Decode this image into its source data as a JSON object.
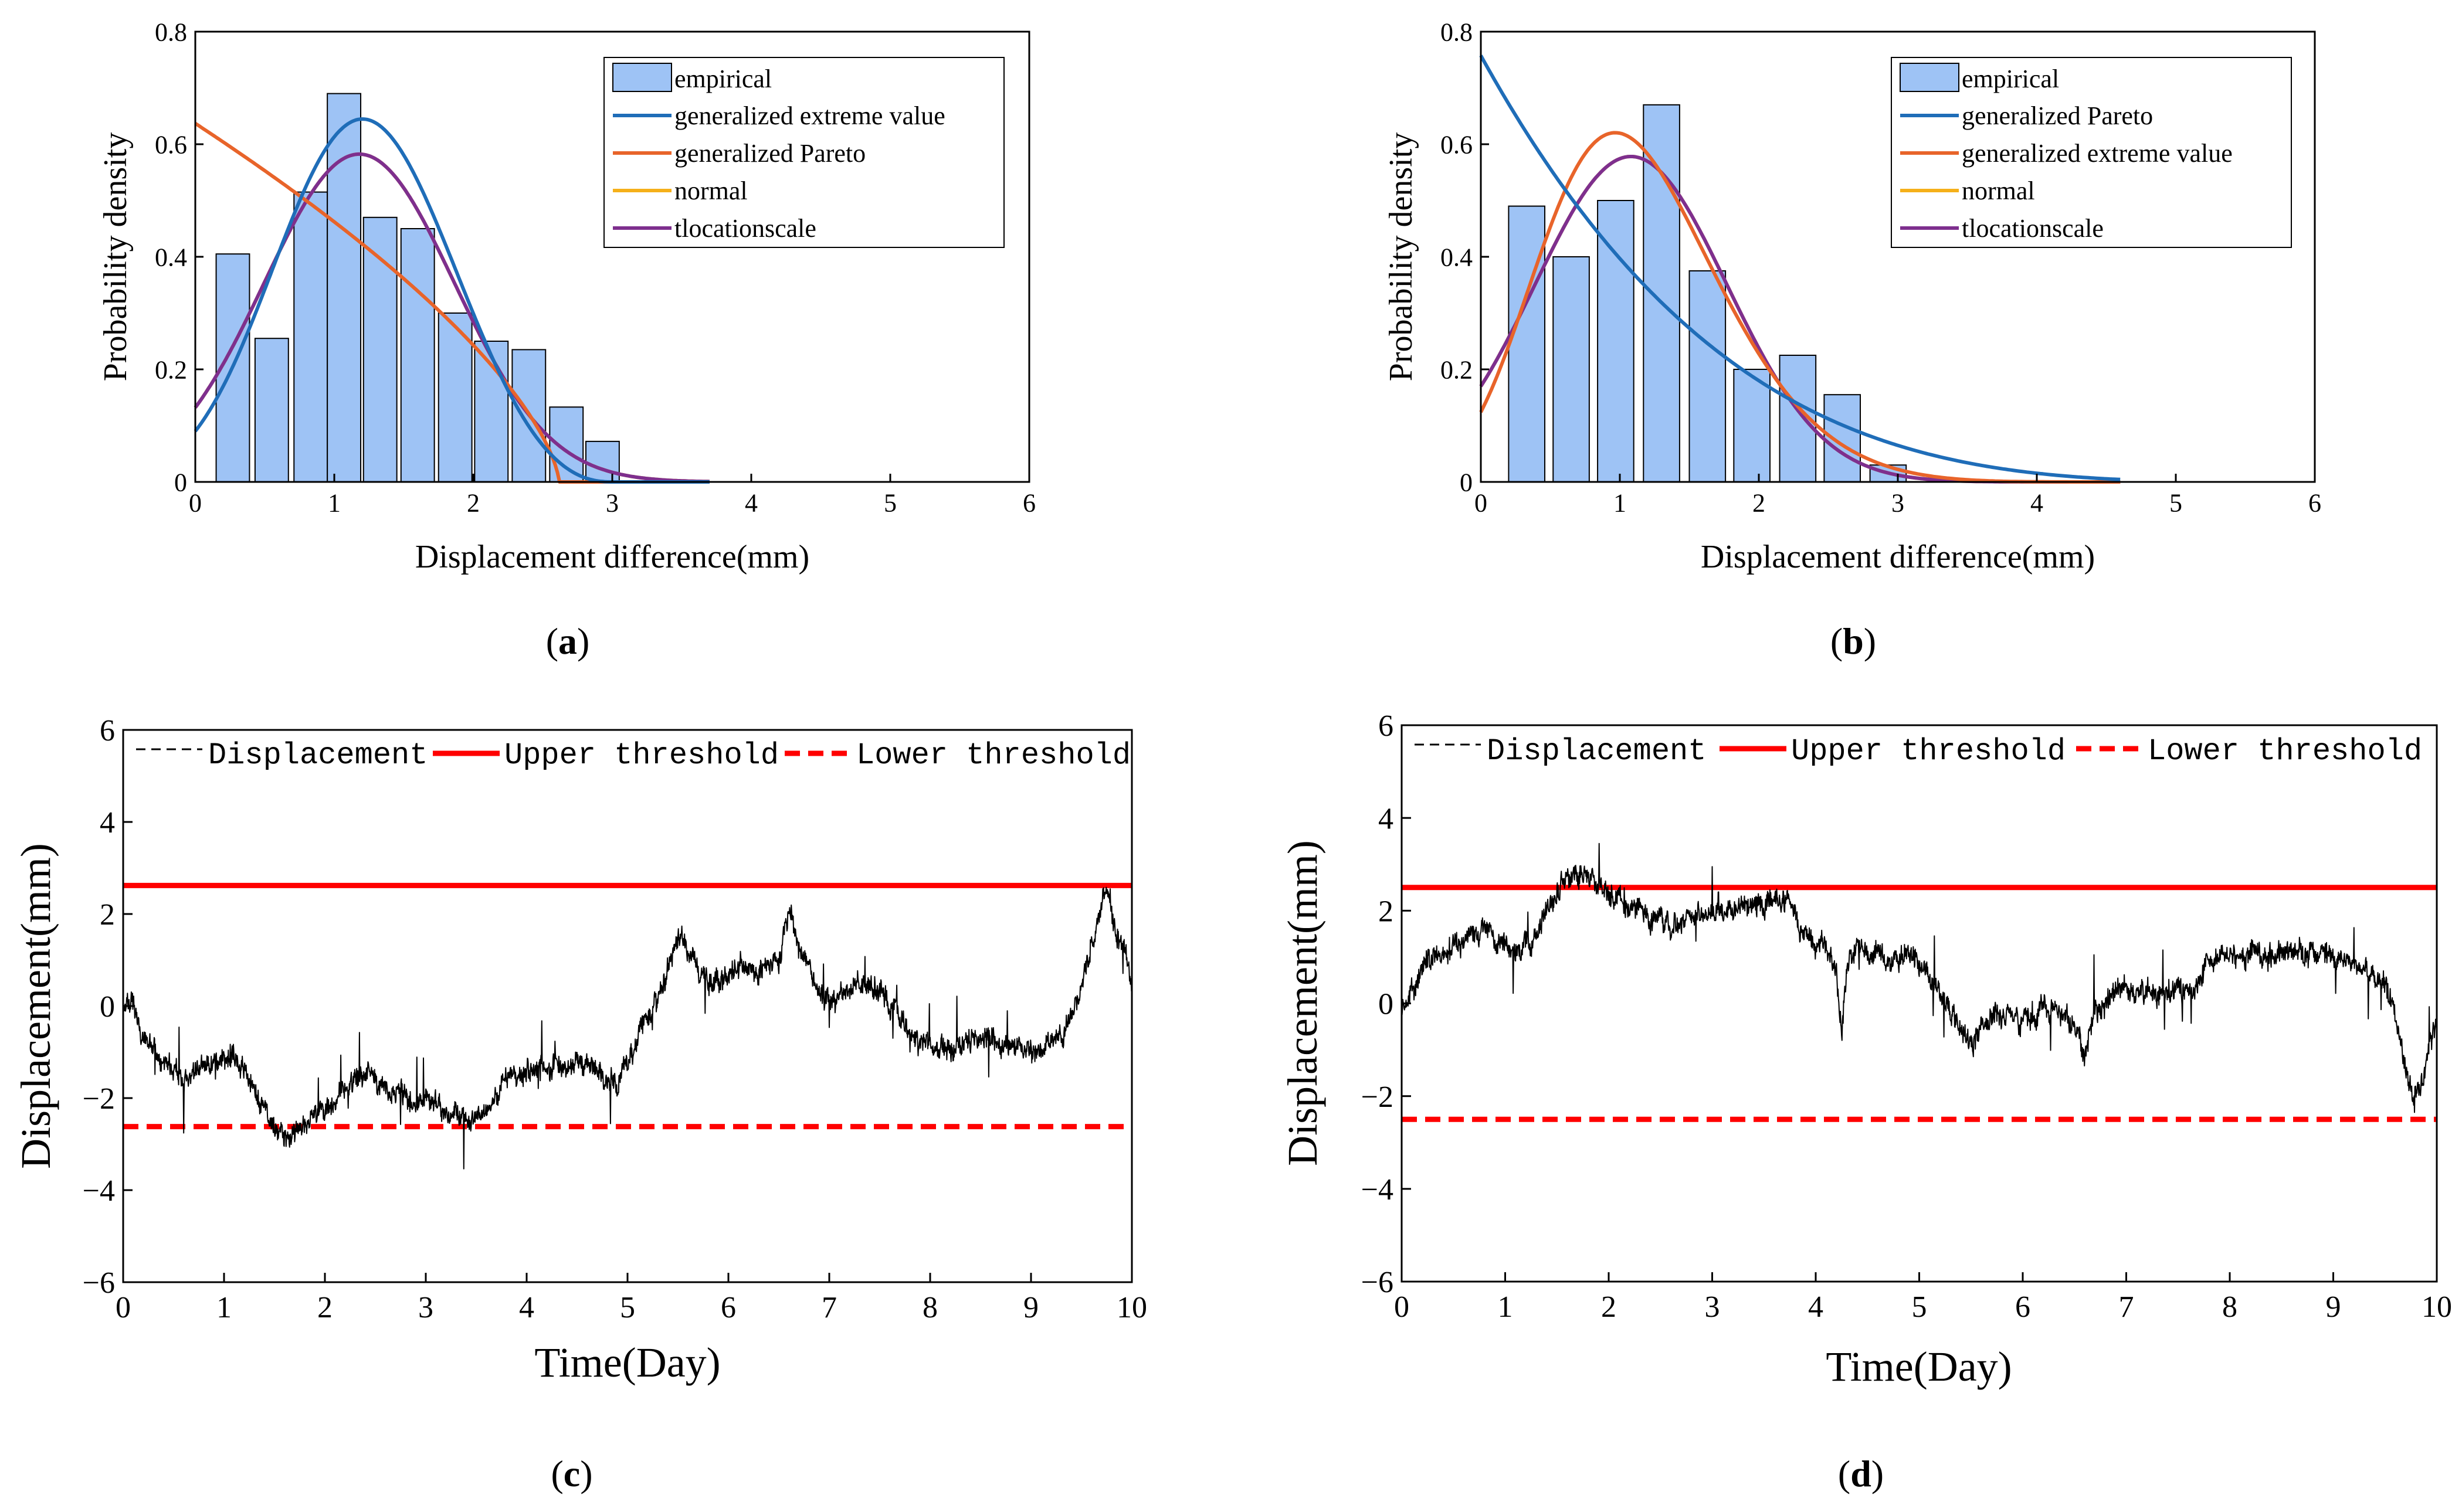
{
  "chart_data": [
    {
      "id": "a",
      "type": "bar",
      "panel_label": {
        "open": "(",
        "letter": "a",
        "close": ")"
      },
      "xlabel": "Displacement difference(mm)",
      "ylabel": "Probability density",
      "xlim": [
        0,
        6
      ],
      "ylim": [
        0,
        0.8
      ],
      "xticks": [
        "0",
        "1",
        "2",
        "3",
        "4",
        "5",
        "6"
      ],
      "yticks": [
        "0",
        "0.2",
        "0.4",
        "0.6",
        "0.8"
      ],
      "bar_width": 0.24,
      "bars": {
        "name": "empirical",
        "x": [
          0.27,
          0.55,
          0.83,
          1.07,
          1.33,
          1.6,
          1.87,
          2.13,
          2.4,
          2.67,
          2.93
        ],
        "values": [
          0.405,
          0.255,
          0.515,
          0.69,
          0.47,
          0.45,
          0.3,
          0.25,
          0.235,
          0.133,
          0.072
        ],
        "color": "#9EC3F5"
      },
      "curves": [
        {
          "name": "generalized extreme value",
          "color": "#1F6DB8",
          "dist": "gev",
          "k": -0.3,
          "mu": 1.0,
          "sigma": 0.6,
          "xmax": 3.7
        },
        {
          "name": "generalized Pareto",
          "color": "#E8642A",
          "dist": "gpd",
          "k": -0.6,
          "sigma": 1.57,
          "xmax": 3.7
        },
        {
          "name": "normal",
          "color": "#F5B01A",
          "dist": "normal",
          "mu": 1.18,
          "sigma": 0.685,
          "xmax": 3.7
        },
        {
          "name": "tlocationscale",
          "color": "#7E2F8E",
          "dist": "normal",
          "mu": 1.18,
          "sigma": 0.685,
          "xmax": 3.7
        }
      ],
      "legend_position": "top-right"
    },
    {
      "id": "b",
      "type": "bar",
      "panel_label": {
        "open": "(",
        "letter": "b",
        "close": ")"
      },
      "xlabel": "Displacement difference(mm)",
      "ylabel": "Probability density",
      "xlim": [
        0,
        6
      ],
      "ylim": [
        0,
        0.8
      ],
      "xticks": [
        "0",
        "1",
        "2",
        "3",
        "4",
        "5",
        "6"
      ],
      "yticks": [
        "0",
        "0.2",
        "0.4",
        "0.6",
        "0.8"
      ],
      "bar_width": 0.26,
      "bars": {
        "name": "empirical",
        "x": [
          0.33,
          0.65,
          0.97,
          1.3,
          1.63,
          1.95,
          2.28,
          2.6,
          2.93
        ],
        "values": [
          0.49,
          0.4,
          0.5,
          0.67,
          0.375,
          0.2,
          0.225,
          0.155,
          0.03
        ],
        "color": "#9EC3F5"
      },
      "curves": [
        {
          "name": "generalized Pareto",
          "color": "#1F6DB8",
          "dist": "gpd",
          "k": -0.22,
          "sigma": 1.32,
          "xmax": 4.6
        },
        {
          "name": "generalized extreme value",
          "color": "#E8642A",
          "dist": "gev",
          "k": -0.15,
          "mu": 0.87,
          "sigma": 0.6,
          "xmax": 4.6
        },
        {
          "name": "normal",
          "color": "#F5B01A",
          "dist": "normal",
          "mu": 1.08,
          "sigma": 0.69,
          "xmax": 4.6
        },
        {
          "name": "tlocationscale",
          "color": "#7E2F8E",
          "dist": "normal",
          "mu": 1.08,
          "sigma": 0.69,
          "xmax": 4.6
        }
      ],
      "legend_position": "top-right"
    },
    {
      "id": "c",
      "type": "line",
      "panel_label": {
        "open": "(",
        "letter": "c",
        "close": ")"
      },
      "xlabel": "Time(Day)",
      "ylabel": "Displacement(mm)",
      "xlim": [
        0,
        10
      ],
      "ylim": [
        -6,
        6
      ],
      "xticks": [
        "0",
        "1",
        "2",
        "3",
        "4",
        "5",
        "6",
        "7",
        "8",
        "9",
        "10"
      ],
      "yticks": [
        "−6",
        "−4",
        "−2",
        "0",
        "2",
        "4",
        "6"
      ],
      "series_name": "Displacement",
      "upper_threshold": {
        "name": "Upper threshold",
        "value": 2.62,
        "color": "#FF0000"
      },
      "lower_threshold": {
        "name": "Lower threshold",
        "value": -2.62,
        "color": "#FF0000"
      },
      "trend_x": [
        0,
        0.1,
        0.2,
        0.4,
        0.6,
        0.8,
        1.0,
        1.2,
        1.4,
        1.6,
        1.8,
        2.0,
        2.2,
        2.4,
        2.6,
        2.8,
        3.0,
        3.2,
        3.4,
        3.6,
        3.8,
        4.0,
        4.3,
        4.6,
        4.9,
        5.1,
        5.3,
        5.5,
        5.7,
        5.9,
        6.1,
        6.3,
        6.5,
        6.6,
        6.7,
        6.9,
        7.1,
        7.3,
        7.5,
        7.7,
        7.9,
        8.1,
        8.3,
        8.5,
        8.7,
        8.9,
        9.1,
        9.3,
        9.5,
        9.65,
        9.75,
        9.85,
        10.0
      ],
      "trend_y": [
        0,
        0,
        -0.8,
        -1.2,
        -1.7,
        -1.3,
        -1.1,
        -1.4,
        -2.3,
        -2.8,
        -2.5,
        -2.3,
        -1.8,
        -1.4,
        -1.8,
        -2.0,
        -1.9,
        -2.2,
        -2.6,
        -2.3,
        -1.6,
        -1.4,
        -1.3,
        -1.2,
        -1.7,
        -0.6,
        0.2,
        1.5,
        0.8,
        0.4,
        0.9,
        0.7,
        1.0,
        2.0,
        1.3,
        0.3,
        0.2,
        0.6,
        0.4,
        -0.3,
        -0.8,
        -0.9,
        -0.9,
        -0.7,
        -0.9,
        -0.9,
        -1.0,
        -0.6,
        0.4,
        1.8,
        2.6,
        1.6,
        0.7
      ],
      "noise": 0.35,
      "seed": 7,
      "legend_position": "top"
    },
    {
      "id": "d",
      "type": "line",
      "panel_label": {
        "open": "(",
        "letter": "d",
        "close": ")"
      },
      "xlabel": "Time(Day)",
      "ylabel": "Displacement(mm)",
      "xlim": [
        0,
        10
      ],
      "ylim": [
        -6,
        6
      ],
      "xticks": [
        "0",
        "1",
        "2",
        "3",
        "4",
        "5",
        "6",
        "7",
        "8",
        "9",
        "10"
      ],
      "yticks": [
        "−6",
        "−4",
        "−2",
        "0",
        "2",
        "4",
        "6"
      ],
      "series_name": "Displacement",
      "upper_threshold": {
        "name": "Upper threshold",
        "value": 2.5,
        "color": "#FF0000"
      },
      "lower_threshold": {
        "name": "Lower threshold",
        "value": -2.5,
        "color": "#FF0000"
      },
      "trend_x": [
        0,
        0.15,
        0.3,
        0.5,
        0.7,
        0.9,
        1.1,
        1.3,
        1.5,
        1.7,
        1.9,
        2.1,
        2.3,
        2.6,
        2.9,
        3.2,
        3.5,
        3.7,
        3.9,
        4.1,
        4.2,
        4.25,
        4.3,
        4.5,
        4.7,
        4.9,
        5.1,
        5.3,
        5.5,
        5.7,
        5.9,
        6.1,
        6.3,
        6.5,
        6.6,
        6.7,
        6.9,
        7.1,
        7.3,
        7.5,
        7.7,
        7.8,
        8.0,
        8.3,
        8.6,
        8.9,
        9.2,
        9.4,
        9.5,
        9.6,
        9.7,
        9.8,
        9.9,
        10.0
      ],
      "trend_y": [
        0,
        0.5,
        1.0,
        1.2,
        1.6,
        1.4,
        1.1,
        1.5,
        2.5,
        2.8,
        2.6,
        2.2,
        2.0,
        1.6,
        1.9,
        2.1,
        2.2,
        2.3,
        1.4,
        1.1,
        0.7,
        -0.6,
        0.9,
        1.2,
        0.9,
        1.0,
        0.6,
        -0.2,
        -0.9,
        -0.2,
        -0.3,
        -0.4,
        0.0,
        -0.5,
        -1.2,
        -0.2,
        0.2,
        0.3,
        0.1,
        0.3,
        0.4,
        0.9,
        1.0,
        1.0,
        1.1,
        1.1,
        0.9,
        0.6,
        0.4,
        -0.4,
        -1.5,
        -2.0,
        -1.2,
        -0.4
      ],
      "noise": 0.35,
      "seed": 13,
      "legend_position": "top"
    }
  ]
}
